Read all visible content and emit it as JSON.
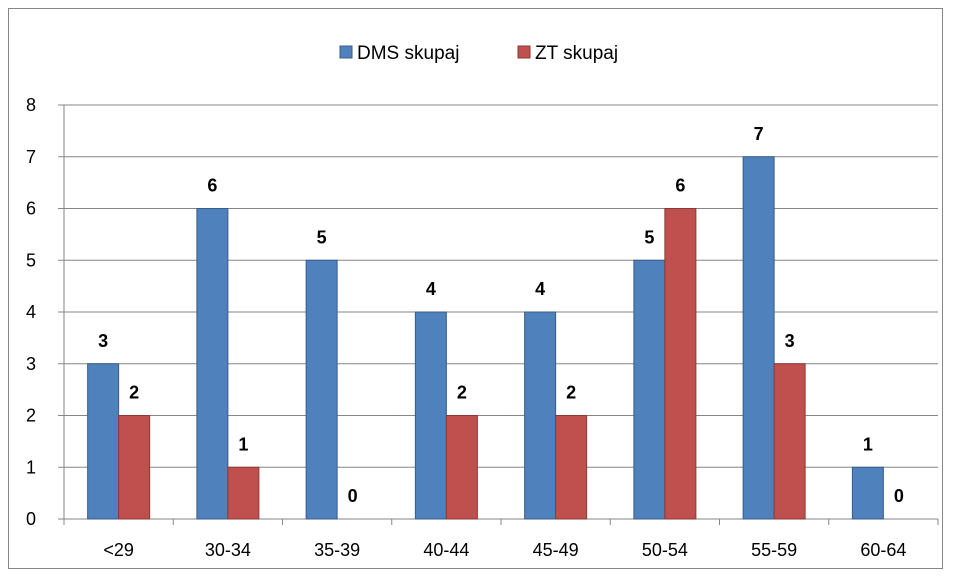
{
  "chart_data": {
    "type": "bar",
    "categories": [
      "<29",
      "30-34",
      "35-39",
      "40-44",
      "45-49",
      "50-54",
      "55-59",
      "60-64"
    ],
    "series": [
      {
        "name": "DMS skupaj",
        "values": [
          3,
          6,
          5,
          4,
          4,
          5,
          7,
          1
        ],
        "color": "#4F81BD",
        "stroke": "#385D8A"
      },
      {
        "name": "ZT skupaj",
        "values": [
          2,
          1,
          0,
          2,
          2,
          6,
          3,
          0
        ],
        "color": "#C0504D",
        "stroke": "#8C3836"
      }
    ],
    "ylim": [
      0,
      8
    ],
    "y_ticks": [
      0,
      1,
      2,
      3,
      4,
      5,
      6,
      7,
      8
    ],
    "grid": true,
    "legend_position": "top",
    "data_labels": true
  }
}
